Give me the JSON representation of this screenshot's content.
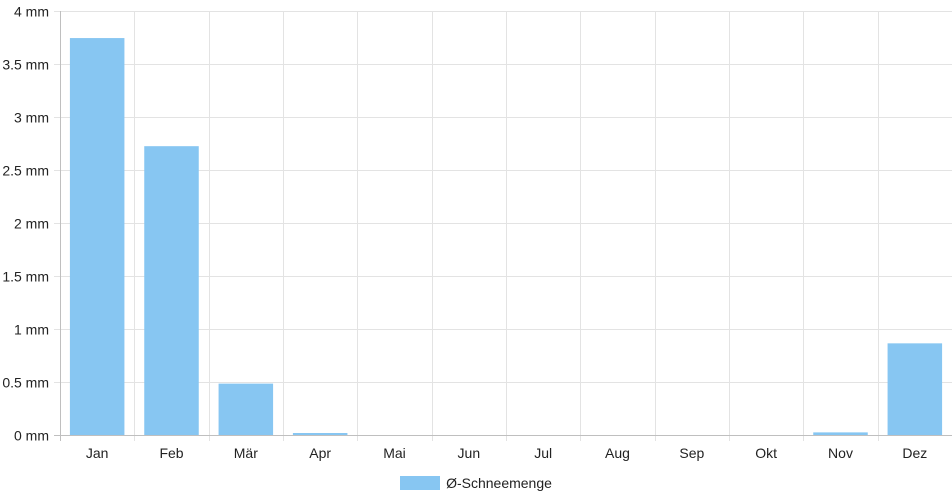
{
  "chart_data": {
    "type": "bar",
    "categories": [
      "Jan",
      "Feb",
      "Mär",
      "Apr",
      "Mai",
      "Jun",
      "Jul",
      "Aug",
      "Sep",
      "Okt",
      "Nov",
      "Dez"
    ],
    "series": [
      {
        "name": "Ø-Schneemenge",
        "values": [
          3.74,
          2.72,
          0.48,
          0.01,
          0,
          0,
          0,
          0,
          0,
          0,
          0.02,
          0.86
        ]
      }
    ],
    "y_unit": "mm",
    "ylim": [
      0,
      4
    ],
    "yticks": [
      0,
      0.5,
      1,
      1.5,
      2,
      2.5,
      3,
      3.5,
      4
    ],
    "ytick_labels": [
      "0 mm",
      "0.5 mm",
      "1 mm",
      "1.5 mm",
      "2 mm",
      "2.5 mm",
      "3 mm",
      "3.5 mm",
      "4 mm"
    ],
    "grid": true,
    "legend": "bottom",
    "colors": {
      "bar_fill": "#87c6f2",
      "bar_border": "#87c6f2",
      "grid": "#e3e3e3",
      "axis": "#bfbfbf",
      "text": "#222222"
    }
  }
}
